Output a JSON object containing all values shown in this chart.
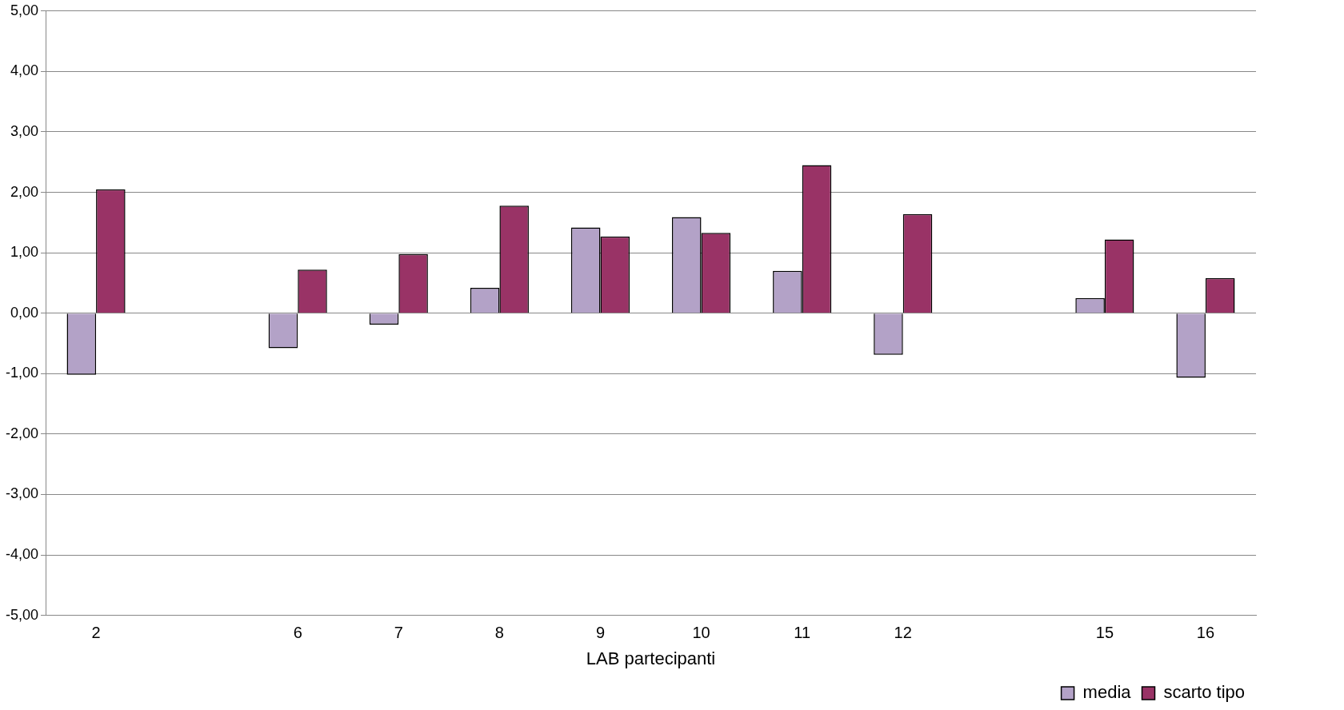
{
  "chart_data": {
    "type": "bar",
    "xlabel": "LAB partecipanti",
    "categories": [
      "2",
      null,
      "6",
      "7",
      "8",
      "9",
      "10",
      "11",
      "12",
      null,
      "15",
      "16"
    ],
    "series": [
      {
        "name": "media",
        "color": "#b3a2c7",
        "values": [
          -1.02,
          null,
          -0.58,
          -0.19,
          0.42,
          1.42,
          1.59,
          0.7,
          -0.69,
          null,
          0.25,
          -1.07
        ]
      },
      {
        "name": "scarto tipo",
        "color": "#993366",
        "values": [
          2.05,
          null,
          0.72,
          0.98,
          1.78,
          1.27,
          1.33,
          2.45,
          1.64,
          null,
          1.22,
          0.58
        ]
      }
    ],
    "ylim": [
      -5,
      5
    ],
    "yticks": [
      {
        "value": -5,
        "label": "-5,00"
      },
      {
        "value": -4,
        "label": "-4,00"
      },
      {
        "value": -3,
        "label": "-3,00"
      },
      {
        "value": -2,
        "label": "-2,00"
      },
      {
        "value": -1,
        "label": "-1,00"
      },
      {
        "value": 0,
        "label": "0,00"
      },
      {
        "value": 1,
        "label": "1,00"
      },
      {
        "value": 2,
        "label": "2,00"
      },
      {
        "value": 3,
        "label": "3,00"
      },
      {
        "value": 4,
        "label": "4,00"
      },
      {
        "value": 5,
        "label": "5,00"
      }
    ],
    "grid": "y",
    "legend": "bottom right"
  }
}
